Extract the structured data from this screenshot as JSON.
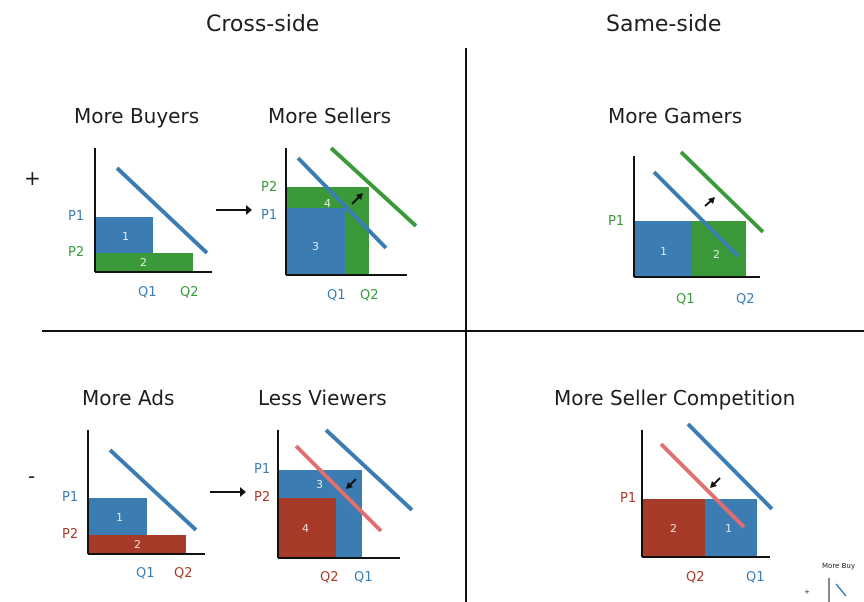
{
  "columns": {
    "cross_side": "Cross-side",
    "same_side": "Same-side"
  },
  "rows": {
    "positive_sign": "+",
    "negative_sign": "-"
  },
  "panels": {
    "more_buyers": {
      "title": "More Buyers",
      "y_labels": [
        "P1",
        "P2"
      ],
      "x_labels": [
        "Q1",
        "Q2"
      ],
      "areas": [
        "1",
        "2"
      ]
    },
    "more_sellers": {
      "title": "More Sellers",
      "y_labels": [
        "P2",
        "P1"
      ],
      "x_labels": [
        "Q1",
        "Q2"
      ],
      "areas": [
        "4",
        "3"
      ]
    },
    "more_gamers": {
      "title": "More Gamers",
      "y_labels": [
        "P1"
      ],
      "x_labels": [
        "Q1",
        "Q2"
      ],
      "areas": [
        "1",
        "2"
      ]
    },
    "more_ads": {
      "title": "More Ads",
      "y_labels": [
        "P1",
        "P2"
      ],
      "x_labels": [
        "Q1",
        "Q2"
      ],
      "areas": [
        "1",
        "2"
      ]
    },
    "less_viewers": {
      "title": "Less Viewers",
      "y_labels": [
        "P1",
        "P2"
      ],
      "x_labels": [
        "Q2",
        "Q1"
      ],
      "areas": [
        "3",
        "4"
      ]
    },
    "more_seller_competition": {
      "title": "More Seller Competition",
      "y_labels": [
        "P1"
      ],
      "x_labels": [
        "Q2",
        "Q1"
      ],
      "areas": [
        "2",
        "1"
      ]
    }
  },
  "thumbnail": {
    "title": "More Buy",
    "sign": "+"
  },
  "colors": {
    "blue": "#3b7db3",
    "green": "#3a9a3a",
    "red": "#a83a2a",
    "red_line": "#e07070"
  }
}
